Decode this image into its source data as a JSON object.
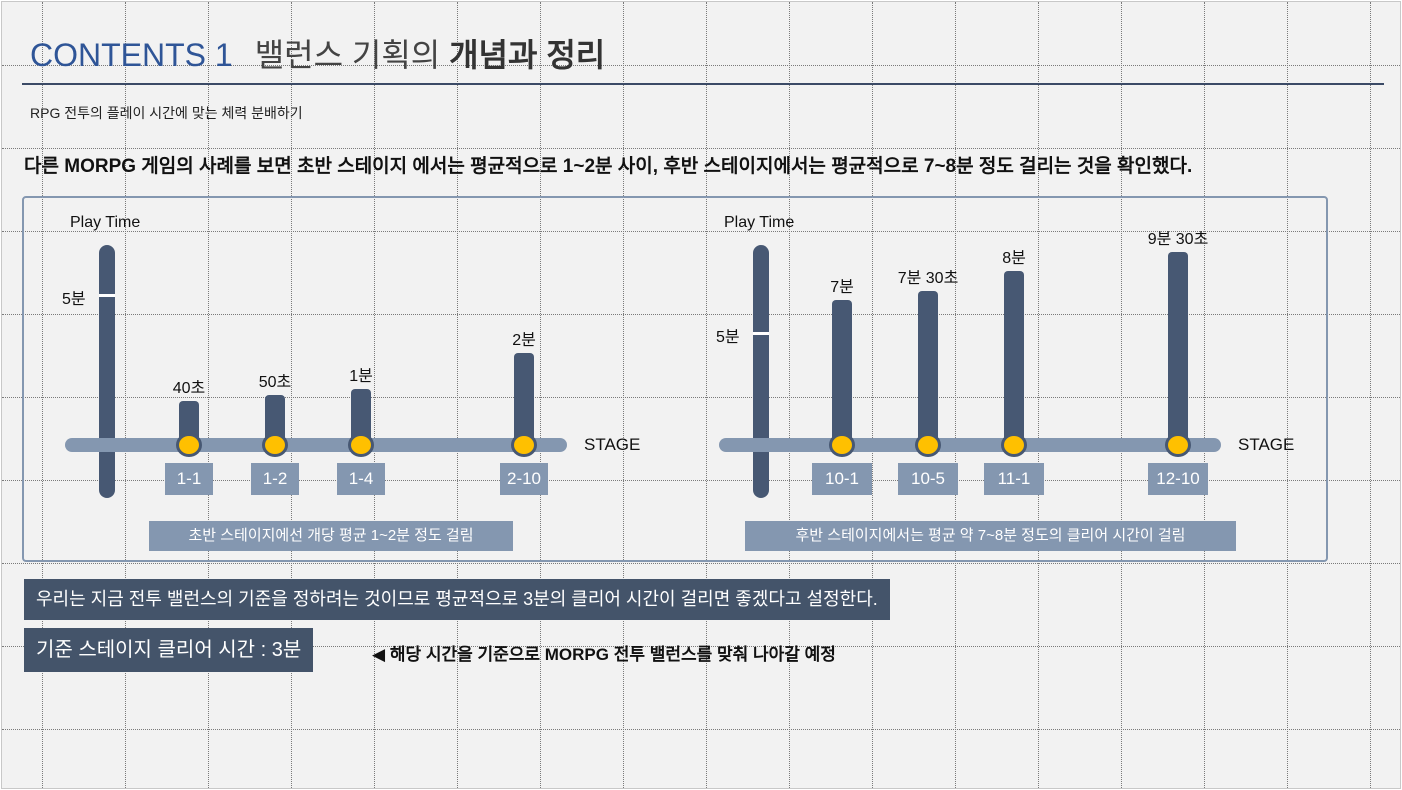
{
  "title": {
    "prefix": "CONTENTS 1",
    "normal": "밸런스 기획의",
    "bold": "개념과 정리"
  },
  "subtitle": "RPG 전투의 플레이 시간에 맞는 체력 분배하기",
  "lead": "다른 MORPG 게임의 사례를 보면 초반 스테이지 에서는 평균적으로 1~2분 사이, 후반 스테이지에서는 평균적으로 7~8분 정도 걸리는 것을 확인했다.",
  "chart_data": [
    {
      "type": "bar",
      "ylabel": "Play Time",
      "xlabel": "STAGE",
      "y_marker": {
        "label": "5분",
        "seconds": 300
      },
      "categories": [
        "1-1",
        "1-2",
        "1-4",
        "2-10"
      ],
      "values_seconds": [
        40,
        50,
        60,
        120
      ],
      "value_labels": [
        "40초",
        "50초",
        "1분",
        "2분"
      ],
      "caption": "초반 스테이지에선 개당 평균 1~2분 정도 걸림"
    },
    {
      "type": "bar",
      "ylabel": "Play Time",
      "xlabel": "STAGE",
      "y_marker": {
        "label": "5분",
        "seconds": 300
      },
      "categories": [
        "10-1",
        "10-5",
        "11-1",
        "12-10"
      ],
      "values_seconds": [
        420,
        450,
        480,
        570
      ],
      "value_labels": [
        "7분",
        "7분 30초",
        "8분",
        "9분 30초"
      ],
      "caption": "후반 스테이지에서는 평균 약 7~8분 정도의 클리어 시간이 걸림"
    }
  ],
  "note": "우리는 지금 전투 밸런스의 기준을 정하려는 것이므로 평균적으로 3분의 클리어 시간이 걸리면 좋겠다고 설정한다.",
  "standard": {
    "label": "기준 스테이지 클리어 시간 : 3분",
    "arrow": "◀",
    "note": "해당 시간을 기준으로 MORPG 전투 밸런스를 맞춰 나아갈 예정"
  },
  "colors": {
    "accent": "#2f5597",
    "dark": "#44546a",
    "bar": "#475873",
    "light": "#8497b0",
    "dot": "#ffc000"
  }
}
